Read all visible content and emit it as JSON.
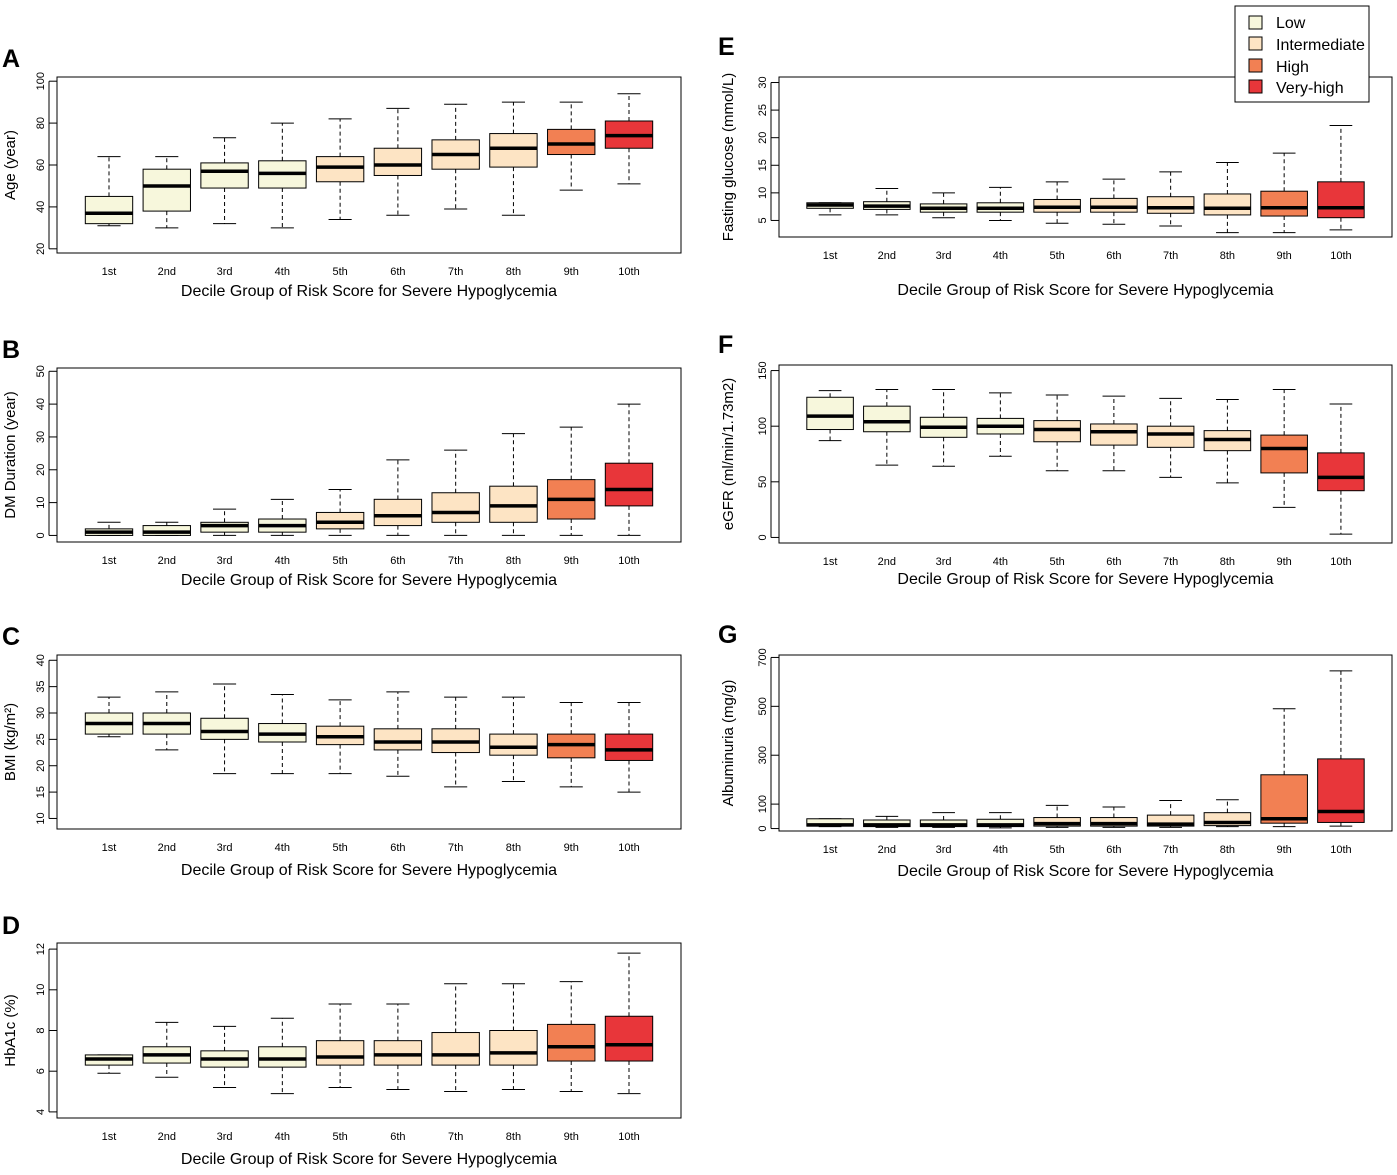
{
  "colors": {
    "Low": "#f7f7dc",
    "Intermediate": "#fde4c4",
    "High": "#f28053",
    "Very-high": "#e8363a"
  },
  "legend": {
    "items": [
      {
        "label": "Low",
        "category": "Low"
      },
      {
        "label": "Intermediate",
        "category": "Intermediate"
      },
      {
        "label": "High",
        "category": "High"
      },
      {
        "label": "Very-high",
        "category": "Very-high"
      }
    ]
  },
  "chart_data": [
    {
      "id": "A",
      "type": "boxplot",
      "letter": "A",
      "xlabel": "Decile Group of Risk Score for Severe Hypoglycemia",
      "ylabel": "Age (year)",
      "ylim": [
        18,
        102
      ],
      "yticks": [
        20,
        40,
        60,
        80,
        100
      ],
      "categories": [
        "1st",
        "2nd",
        "3rd",
        "4th",
        "5th",
        "6th",
        "7th",
        "8th",
        "9th",
        "10th"
      ],
      "groups": [
        "Low",
        "Low",
        "Low",
        "Low",
        "Intermediate",
        "Intermediate",
        "Intermediate",
        "Intermediate",
        "High",
        "Very-high"
      ],
      "boxes": [
        {
          "min": 31,
          "q1": 32,
          "median": 37,
          "q3": 45,
          "max": 64
        },
        {
          "min": 30,
          "q1": 38,
          "median": 50,
          "q3": 58,
          "max": 64
        },
        {
          "min": 32,
          "q1": 49,
          "median": 57,
          "q3": 61,
          "max": 73
        },
        {
          "min": 30,
          "q1": 49,
          "median": 56,
          "q3": 62,
          "max": 80
        },
        {
          "min": 34,
          "q1": 52,
          "median": 59,
          "q3": 64,
          "max": 82
        },
        {
          "min": 36,
          "q1": 55,
          "median": 60,
          "q3": 68,
          "max": 87
        },
        {
          "min": 39,
          "q1": 58,
          "median": 65,
          "q3": 72,
          "max": 89
        },
        {
          "min": 36,
          "q1": 59,
          "median": 68,
          "q3": 75,
          "max": 90
        },
        {
          "min": 48,
          "q1": 65,
          "median": 70,
          "q3": 77,
          "max": 90
        },
        {
          "min": 51,
          "q1": 68,
          "median": 74,
          "q3": 81,
          "max": 94
        }
      ]
    },
    {
      "id": "B",
      "type": "boxplot",
      "letter": "B",
      "xlabel": "Decile Group of Risk Score for Severe Hypoglycemia",
      "ylabel": "DM Duration (year)",
      "ylim": [
        -2,
        51
      ],
      "yticks": [
        0,
        10,
        20,
        30,
        40,
        50
      ],
      "categories": [
        "1st",
        "2nd",
        "3rd",
        "4th",
        "5th",
        "6th",
        "7th",
        "8th",
        "9th",
        "10th"
      ],
      "groups": [
        "Low",
        "Low",
        "Low",
        "Low",
        "Intermediate",
        "Intermediate",
        "Intermediate",
        "Intermediate",
        "High",
        "Very-high"
      ],
      "boxes": [
        {
          "min": 0,
          "q1": 0,
          "median": 1,
          "q3": 2,
          "max": 4
        },
        {
          "min": 0,
          "q1": 0,
          "median": 1,
          "q3": 3,
          "max": 4
        },
        {
          "min": 0,
          "q1": 1,
          "median": 3,
          "q3": 4,
          "max": 8
        },
        {
          "min": 0,
          "q1": 1,
          "median": 3,
          "q3": 5,
          "max": 11
        },
        {
          "min": 0,
          "q1": 2,
          "median": 4,
          "q3": 7,
          "max": 14
        },
        {
          "min": 0,
          "q1": 3,
          "median": 6,
          "q3": 11,
          "max": 23
        },
        {
          "min": 0,
          "q1": 4,
          "median": 7,
          "q3": 13,
          "max": 26
        },
        {
          "min": 0,
          "q1": 4,
          "median": 9,
          "q3": 15,
          "max": 31
        },
        {
          "min": 0,
          "q1": 5,
          "median": 11,
          "q3": 17,
          "max": 33
        },
        {
          "min": 0,
          "q1": 9,
          "median": 14,
          "q3": 22,
          "max": 40
        }
      ]
    },
    {
      "id": "C",
      "type": "boxplot",
      "letter": "C",
      "xlabel": "Decile Group of Risk Score for Severe Hypoglycemia",
      "ylabel": "BMI (kg/m²)",
      "ylim": [
        8,
        41
      ],
      "yticks": [
        10,
        15,
        20,
        25,
        30,
        35,
        40
      ],
      "categories": [
        "1st",
        "2nd",
        "3rd",
        "4th",
        "5th",
        "6th",
        "7th",
        "8th",
        "9th",
        "10th"
      ],
      "groups": [
        "Low",
        "Low",
        "Low",
        "Low",
        "Intermediate",
        "Intermediate",
        "Intermediate",
        "Intermediate",
        "High",
        "Very-high"
      ],
      "boxes": [
        {
          "min": 25.5,
          "q1": 26,
          "median": 28,
          "q3": 30,
          "max": 33
        },
        {
          "min": 23,
          "q1": 26,
          "median": 28,
          "q3": 30,
          "max": 34
        },
        {
          "min": 18.5,
          "q1": 25,
          "median": 26.5,
          "q3": 29,
          "max": 35.5
        },
        {
          "min": 18.5,
          "q1": 24.5,
          "median": 26,
          "q3": 28,
          "max": 33.5
        },
        {
          "min": 18.5,
          "q1": 24,
          "median": 25.5,
          "q3": 27.5,
          "max": 32.5
        },
        {
          "min": 18,
          "q1": 23,
          "median": 24.5,
          "q3": 27,
          "max": 34
        },
        {
          "min": 16,
          "q1": 22.5,
          "median": 24.5,
          "q3": 27,
          "max": 33
        },
        {
          "min": 17,
          "q1": 22,
          "median": 23.5,
          "q3": 26,
          "max": 33
        },
        {
          "min": 16,
          "q1": 21.5,
          "median": 24,
          "q3": 26,
          "max": 32
        },
        {
          "min": 15,
          "q1": 21,
          "median": 23,
          "q3": 26,
          "max": 32
        }
      ]
    },
    {
      "id": "D",
      "type": "boxplot",
      "letter": "D",
      "xlabel": "Decile Group of Risk Score for Severe Hypoglycemia",
      "ylabel": "HbA1c (%)",
      "ylim": [
        3.7,
        12.3
      ],
      "yticks": [
        4,
        6,
        8,
        10,
        12
      ],
      "categories": [
        "1st",
        "2nd",
        "3rd",
        "4th",
        "5th",
        "6th",
        "7th",
        "8th",
        "9th",
        "10th"
      ],
      "groups": [
        "Low",
        "Low",
        "Low",
        "Low",
        "Intermediate",
        "Intermediate",
        "Intermediate",
        "Intermediate",
        "High",
        "Very-high"
      ],
      "boxes": [
        {
          "min": 5.9,
          "q1": 6.3,
          "median": 6.6,
          "q3": 6.8,
          "max": 6.8
        },
        {
          "min": 5.7,
          "q1": 6.4,
          "median": 6.8,
          "q3": 7.2,
          "max": 8.4
        },
        {
          "min": 5.2,
          "q1": 6.2,
          "median": 6.6,
          "q3": 7.0,
          "max": 8.2
        },
        {
          "min": 4.9,
          "q1": 6.2,
          "median": 6.6,
          "q3": 7.2,
          "max": 8.6
        },
        {
          "min": 5.2,
          "q1": 6.3,
          "median": 6.7,
          "q3": 7.5,
          "max": 9.3
        },
        {
          "min": 5.1,
          "q1": 6.3,
          "median": 6.8,
          "q3": 7.5,
          "max": 9.3
        },
        {
          "min": 5.0,
          "q1": 6.3,
          "median": 6.8,
          "q3": 7.9,
          "max": 10.3
        },
        {
          "min": 5.1,
          "q1": 6.3,
          "median": 6.9,
          "q3": 8.0,
          "max": 10.3
        },
        {
          "min": 5.0,
          "q1": 6.5,
          "median": 7.2,
          "q3": 8.3,
          "max": 10.4
        },
        {
          "min": 4.9,
          "q1": 6.5,
          "median": 7.3,
          "q3": 8.7,
          "max": 11.8
        }
      ]
    },
    {
      "id": "E",
      "type": "boxplot",
      "letter": "E",
      "xlabel": "Decile Group of Risk Score for Severe Hypoglycemia",
      "ylabel": "Fasting glucose (mmol/L)",
      "ylim": [
        2,
        31
      ],
      "yticks": [
        5,
        10,
        15,
        20,
        25,
        30
      ],
      "categories": [
        "1st",
        "2nd",
        "3rd",
        "4th",
        "5th",
        "6th",
        "7th",
        "8th",
        "9th",
        "10th"
      ],
      "groups": [
        "Low",
        "Low",
        "Low",
        "Low",
        "Intermediate",
        "Intermediate",
        "Intermediate",
        "Intermediate",
        "High",
        "Very-high"
      ],
      "boxes": [
        {
          "min": 6,
          "q1": 7.2,
          "median": 7.8,
          "q3": 8.2,
          "max": 8.2
        },
        {
          "min": 6,
          "q1": 7,
          "median": 7.6,
          "q3": 8.4,
          "max": 10.8
        },
        {
          "min": 5.5,
          "q1": 6.5,
          "median": 7.2,
          "q3": 8,
          "max": 10
        },
        {
          "min": 5,
          "q1": 6.5,
          "median": 7.2,
          "q3": 8.2,
          "max": 11
        },
        {
          "min": 4.5,
          "q1": 6.5,
          "median": 7.4,
          "q3": 8.8,
          "max": 12
        },
        {
          "min": 4.3,
          "q1": 6.5,
          "median": 7.4,
          "q3": 9,
          "max": 12.5
        },
        {
          "min": 4,
          "q1": 6.3,
          "median": 7.3,
          "q3": 9.3,
          "max": 13.8
        },
        {
          "min": 2.8,
          "q1": 6,
          "median": 7.2,
          "q3": 9.8,
          "max": 15.5
        },
        {
          "min": 2.8,
          "q1": 5.8,
          "median": 7.3,
          "q3": 10.3,
          "max": 17.2
        },
        {
          "min": 3.3,
          "q1": 5.5,
          "median": 7.3,
          "q3": 12,
          "max": 22.2
        }
      ]
    },
    {
      "id": "F",
      "type": "boxplot",
      "letter": "F",
      "xlabel": "Decile Group of Risk Score for Severe Hypoglycemia",
      "ylabel": "eGFR (ml/min/1.73m2)",
      "ylim": [
        -5,
        155
      ],
      "yticks": [
        0,
        50,
        100,
        150
      ],
      "categories": [
        "1st",
        "2nd",
        "3rd",
        "4th",
        "5th",
        "6th",
        "7th",
        "8th",
        "9th",
        "10th"
      ],
      "groups": [
        "Low",
        "Low",
        "Low",
        "Low",
        "Intermediate",
        "Intermediate",
        "Intermediate",
        "Intermediate",
        "High",
        "Very-high"
      ],
      "boxes": [
        {
          "min": 87,
          "q1": 97,
          "median": 109,
          "q3": 126,
          "max": 132
        },
        {
          "min": 65,
          "q1": 95,
          "median": 104,
          "q3": 118,
          "max": 133
        },
        {
          "min": 64,
          "q1": 90,
          "median": 99,
          "q3": 108,
          "max": 133
        },
        {
          "min": 73,
          "q1": 93,
          "median": 100,
          "q3": 107,
          "max": 130
        },
        {
          "min": 60,
          "q1": 86,
          "median": 97,
          "q3": 105,
          "max": 128
        },
        {
          "min": 60,
          "q1": 83,
          "median": 95,
          "q3": 102,
          "max": 127
        },
        {
          "min": 54,
          "q1": 81,
          "median": 93,
          "q3": 100,
          "max": 125
        },
        {
          "min": 49,
          "q1": 78,
          "median": 88,
          "q3": 96,
          "max": 124
        },
        {
          "min": 27,
          "q1": 58,
          "median": 80,
          "q3": 92,
          "max": 133
        },
        {
          "min": 3,
          "q1": 42,
          "median": 54,
          "q3": 76,
          "max": 120
        }
      ]
    },
    {
      "id": "G",
      "type": "boxplot",
      "letter": "G",
      "xlabel": "Decile Group of Risk Score for Severe Hypoglycemia",
      "ylabel": "Albuminuria (mg/g)",
      "ylim": [
        -10,
        710
      ],
      "yticks": [
        0,
        100,
        300,
        500,
        700
      ],
      "categories": [
        "1st",
        "2nd",
        "3rd",
        "4th",
        "5th",
        "6th",
        "7th",
        "8th",
        "9th",
        "10th"
      ],
      "groups": [
        "Low",
        "Low",
        "Low",
        "Low",
        "Intermediate",
        "Intermediate",
        "Intermediate",
        "Intermediate",
        "High",
        "Very-high"
      ],
      "boxes": [
        {
          "min": 8,
          "q1": 10,
          "median": 15,
          "q3": 40,
          "max": 40
        },
        {
          "min": 5,
          "q1": 8,
          "median": 15,
          "q3": 35,
          "max": 50
        },
        {
          "min": 5,
          "q1": 8,
          "median": 15,
          "q3": 35,
          "max": 65
        },
        {
          "min": 3,
          "q1": 8,
          "median": 15,
          "q3": 38,
          "max": 65
        },
        {
          "min": 5,
          "q1": 10,
          "median": 20,
          "q3": 45,
          "max": 95
        },
        {
          "min": 5,
          "q1": 10,
          "median": 20,
          "q3": 45,
          "max": 88
        },
        {
          "min": 5,
          "q1": 10,
          "median": 18,
          "q3": 55,
          "max": 115
        },
        {
          "min": 8,
          "q1": 12,
          "median": 25,
          "q3": 65,
          "max": 118
        },
        {
          "min": 8,
          "q1": 22,
          "median": 40,
          "q3": 220,
          "max": 490
        },
        {
          "min": 10,
          "q1": 25,
          "median": 70,
          "q3": 285,
          "max": 645
        }
      ]
    }
  ]
}
